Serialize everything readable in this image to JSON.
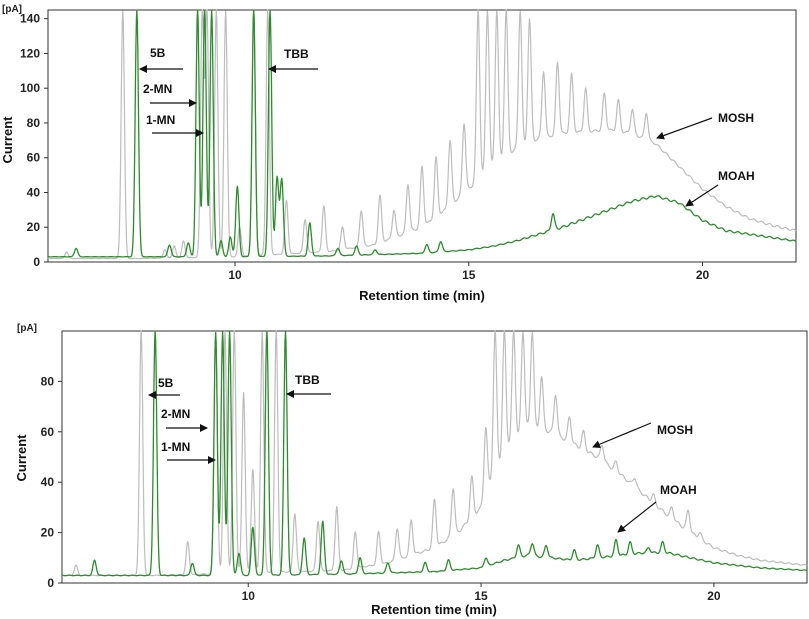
{
  "colors": {
    "mosh": "#bdbdbd",
    "moah": "#2e8b2e",
    "axis": "#333333"
  },
  "chart_data": [
    {
      "type": "line",
      "unit": "[pA]",
      "xlabel": "Retention time (min)",
      "ylabel": "Current",
      "xlim": [
        6,
        22
      ],
      "ylim": [
        0,
        145
      ],
      "xticks": [
        10,
        15,
        20
      ],
      "yticks": [
        0,
        20,
        40,
        60,
        80,
        100,
        120,
        140
      ],
      "series": [
        {
          "name": "MOSH",
          "baseline": [
            [
              6,
              2
            ],
            [
              8,
              2
            ],
            [
              10,
              3
            ],
            [
              12,
              6
            ],
            [
              13,
              10
            ],
            [
              14,
              20
            ],
            [
              14.5,
              30
            ],
            [
              15,
              42
            ],
            [
              15.5,
              55
            ],
            [
              16,
              65
            ],
            [
              16.5,
              71
            ],
            [
              17,
              74
            ],
            [
              17.5,
              75
            ],
            [
              18,
              76
            ],
            [
              18.5,
              74
            ],
            [
              19,
              68
            ],
            [
              19.5,
              55
            ],
            [
              20,
              42
            ],
            [
              20.5,
              32
            ],
            [
              21,
              25
            ],
            [
              21.5,
              21
            ],
            [
              22,
              18
            ]
          ],
          "peaks": [
            [
              6.4,
              6
            ],
            [
              7.6,
              145
            ],
            [
              8.5,
              7
            ],
            [
              8.7,
              9
            ],
            [
              8.9,
              12
            ],
            [
              9.3,
              145
            ],
            [
              9.4,
              145
            ],
            [
              9.6,
              145
            ],
            [
              9.8,
              145
            ],
            [
              10.1,
              20
            ],
            [
              10.4,
              145
            ],
            [
              10.7,
              145
            ],
            [
              11.1,
              35
            ],
            [
              11.5,
              25
            ],
            [
              11.9,
              32
            ],
            [
              12.3,
              20
            ],
            [
              12.7,
              30
            ],
            [
              13.1,
              38
            ],
            [
              13.4,
              30
            ],
            [
              13.7,
              45
            ],
            [
              14.0,
              55
            ],
            [
              14.3,
              60
            ],
            [
              14.6,
              70
            ],
            [
              14.9,
              80
            ],
            [
              15.2,
              145
            ],
            [
              15.4,
              145
            ],
            [
              15.6,
              145
            ],
            [
              15.8,
              145
            ],
            [
              16.1,
              145
            ],
            [
              16.3,
              140
            ],
            [
              16.6,
              110
            ],
            [
              16.9,
              115
            ],
            [
              17.2,
              108
            ],
            [
              17.5,
              100
            ],
            [
              17.9,
              97
            ],
            [
              18.2,
              93
            ],
            [
              18.5,
              88
            ],
            [
              18.8,
              86
            ]
          ]
        },
        {
          "name": "MOAH",
          "baseline": [
            [
              6,
              3
            ],
            [
              10,
              3
            ],
            [
              12,
              3.5
            ],
            [
              14,
              5
            ],
            [
              15,
              7
            ],
            [
              15.5,
              9
            ],
            [
              16,
              12
            ],
            [
              16.5,
              16
            ],
            [
              17,
              20
            ],
            [
              17.5,
              25
            ],
            [
              18,
              30
            ],
            [
              18.5,
              35
            ],
            [
              19,
              38
            ],
            [
              19.5,
              34
            ],
            [
              20,
              24
            ],
            [
              20.5,
              18
            ],
            [
              21,
              16
            ],
            [
              21.5,
              14
            ],
            [
              22,
              12
            ]
          ],
          "peaks": [
            [
              6.6,
              8
            ],
            [
              7.9,
              145
            ],
            [
              8.6,
              10
            ],
            [
              9.0,
              11
            ],
            [
              9.2,
              145
            ],
            [
              9.35,
              145
            ],
            [
              9.5,
              145
            ],
            [
              9.7,
              12
            ],
            [
              9.9,
              14
            ],
            [
              10.05,
              43
            ],
            [
              10.4,
              145
            ],
            [
              10.75,
              145
            ],
            [
              10.9,
              48
            ],
            [
              11.0,
              48
            ],
            [
              11.6,
              22
            ],
            [
              12.2,
              8
            ],
            [
              12.6,
              9
            ],
            [
              13.0,
              7
            ],
            [
              14.1,
              10
            ],
            [
              14.4,
              12
            ],
            [
              15.6,
              9
            ],
            [
              16.3,
              14
            ],
            [
              16.8,
              28
            ],
            [
              17.3,
              22
            ],
            [
              17.8,
              24
            ],
            [
              18.3,
              27
            ]
          ]
        }
      ],
      "annotations": [
        {
          "label": "5B",
          "arrow": "left"
        },
        {
          "label": "2-MN",
          "arrow": "right"
        },
        {
          "label": "1-MN",
          "arrow": "right"
        },
        {
          "label": "TBB",
          "arrow": "left"
        },
        {
          "label": "MOSH",
          "arrow": "down-left"
        },
        {
          "label": "MOAH",
          "arrow": "down-left"
        }
      ]
    },
    {
      "type": "line",
      "unit": "[pA]",
      "xlabel": "Retention time (min)",
      "ylabel": "Current",
      "xlim": [
        6,
        22
      ],
      "ylim": [
        0,
        100
      ],
      "xticks": [
        10,
        15,
        20
      ],
      "yticks": [
        0,
        20,
        40,
        60,
        80
      ],
      "series": [
        {
          "name": "MOSH",
          "baseline": [
            [
              6,
              3
            ],
            [
              8,
              3
            ],
            [
              10,
              4
            ],
            [
              12,
              5
            ],
            [
              13,
              8
            ],
            [
              14,
              14
            ],
            [
              14.5,
              20
            ],
            [
              15,
              30
            ],
            [
              15.3,
              45
            ],
            [
              15.6,
              55
            ],
            [
              16,
              62
            ],
            [
              16.5,
              60
            ],
            [
              17,
              55
            ],
            [
              17.5,
              50
            ],
            [
              18,
              43
            ],
            [
              18.5,
              35
            ],
            [
              19,
              27
            ],
            [
              19.5,
              20
            ],
            [
              20,
              14
            ],
            [
              20.5,
              11
            ],
            [
              21,
              9
            ],
            [
              21.5,
              8
            ],
            [
              22,
              7
            ]
          ],
          "peaks": [
            [
              6.3,
              7
            ],
            [
              7.7,
              100
            ],
            [
              8.7,
              16
            ],
            [
              9.3,
              100
            ],
            [
              9.5,
              100
            ],
            [
              9.7,
              100
            ],
            [
              9.9,
              75
            ],
            [
              10.1,
              45
            ],
            [
              10.3,
              100
            ],
            [
              10.6,
              100
            ],
            [
              11.0,
              28
            ],
            [
              11.5,
              25
            ],
            [
              11.9,
              30
            ],
            [
              12.3,
              20
            ],
            [
              12.8,
              20
            ],
            [
              13.2,
              22
            ],
            [
              13.5,
              25
            ],
            [
              14.0,
              33
            ],
            [
              14.4,
              38
            ],
            [
              14.8,
              42
            ],
            [
              15.1,
              62
            ],
            [
              15.3,
              100
            ],
            [
              15.5,
              100
            ],
            [
              15.7,
              100
            ],
            [
              15.9,
              100
            ],
            [
              16.1,
              100
            ],
            [
              16.3,
              82
            ],
            [
              16.6,
              75
            ],
            [
              16.9,
              66
            ],
            [
              17.2,
              60
            ],
            [
              17.6,
              55
            ],
            [
              17.9,
              48
            ],
            [
              18.3,
              42
            ],
            [
              18.7,
              35
            ],
            [
              19.1,
              30
            ],
            [
              19.45,
              29
            ],
            [
              19.7,
              20
            ]
          ]
        },
        {
          "name": "MOAH",
          "baseline": [
            [
              6,
              3
            ],
            [
              10,
              3
            ],
            [
              12,
              3.5
            ],
            [
              14,
              4.5
            ],
            [
              15,
              6
            ],
            [
              15.5,
              9
            ],
            [
              16,
              11
            ],
            [
              16.5,
              10
            ],
            [
              17,
              9
            ],
            [
              17.5,
              10
            ],
            [
              18,
              11
            ],
            [
              18.5,
              12
            ],
            [
              19,
              12
            ],
            [
              19.5,
              10
            ],
            [
              20,
              8
            ],
            [
              20.5,
              7
            ],
            [
              21,
              6
            ],
            [
              22,
              5
            ]
          ],
          "peaks": [
            [
              6.7,
              9
            ],
            [
              8.0,
              100
            ],
            [
              8.8,
              8
            ],
            [
              9.3,
              100
            ],
            [
              9.45,
              100
            ],
            [
              9.6,
              100
            ],
            [
              9.8,
              12
            ],
            [
              10.1,
              22
            ],
            [
              10.4,
              100
            ],
            [
              10.8,
              100
            ],
            [
              11.2,
              18
            ],
            [
              11.6,
              24
            ],
            [
              12.0,
              9
            ],
            [
              12.4,
              10
            ],
            [
              13.0,
              8
            ],
            [
              13.8,
              8
            ],
            [
              14.3,
              9
            ],
            [
              15.1,
              10
            ],
            [
              15.8,
              15
            ],
            [
              16.1,
              16
            ],
            [
              16.4,
              15
            ],
            [
              17.0,
              13
            ],
            [
              17.5,
              15
            ],
            [
              17.9,
              17
            ],
            [
              18.2,
              16
            ],
            [
              18.6,
              14
            ],
            [
              18.9,
              16
            ]
          ]
        }
      ],
      "annotations": [
        {
          "label": "5B",
          "arrow": "left"
        },
        {
          "label": "2-MN",
          "arrow": "right"
        },
        {
          "label": "1-MN",
          "arrow": "right"
        },
        {
          "label": "TBB",
          "arrow": "left"
        },
        {
          "label": "MOSH",
          "arrow": "down-left"
        },
        {
          "label": "MOAH",
          "arrow": "down-left"
        }
      ]
    }
  ]
}
